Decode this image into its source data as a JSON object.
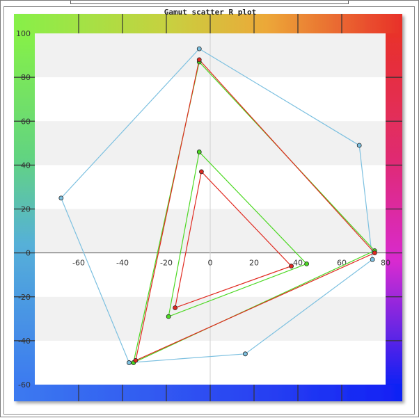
{
  "chart_data": {
    "type": "scatter",
    "title": "Gamut scatter R plot",
    "xlim": [
      -80,
      80
    ],
    "ylim": [
      -60,
      100
    ],
    "x_ticks": [
      -60,
      -40,
      -20,
      0,
      20,
      40,
      60,
      80
    ],
    "y_ticks": [
      -60,
      -40,
      -20,
      0,
      20,
      40,
      60,
      80,
      100
    ],
    "x_tick_labels": [
      "-60",
      "-40",
      "-20",
      "0",
      "20",
      "40",
      "60",
      "80"
    ],
    "y_tick_labels": [
      "-60",
      "-40",
      "-20",
      "0",
      "20",
      "40",
      "60",
      "80",
      "100"
    ],
    "grid": "horizontal bands",
    "series": [
      {
        "color": "#7cc0e0",
        "polygons": [
          [
            [
              -5,
              93
            ],
            [
              68,
              49
            ],
            [
              74,
              -3
            ],
            [
              16,
              -46
            ],
            [
              -37,
              -50
            ],
            [
              -68,
              25
            ]
          ]
        ]
      },
      {
        "color": "#4cd822",
        "polygons": [
          [
            [
              -5,
              87
            ],
            [
              75,
              1
            ],
            [
              -35,
              -50
            ]
          ],
          [
            [
              -5,
              46
            ],
            [
              44,
              -5
            ],
            [
              -19,
              -29
            ]
          ]
        ]
      },
      {
        "color": "#e02a20",
        "polygons": [
          [
            [
              -5,
              88
            ],
            [
              75,
              0
            ],
            [
              -34,
              -49
            ]
          ],
          [
            [
              -4,
              37
            ],
            [
              37,
              -6
            ],
            [
              -16,
              -25
            ]
          ]
        ]
      }
    ],
    "colors": {
      "frame_red": "#e8302a",
      "frame_yellow": "#e8b02a",
      "frame_green": "#8ef040",
      "frame_cyan": "#56b0d8",
      "frame_blue": "#1030f0",
      "frame_magenta": "#d82cd0"
    }
  }
}
